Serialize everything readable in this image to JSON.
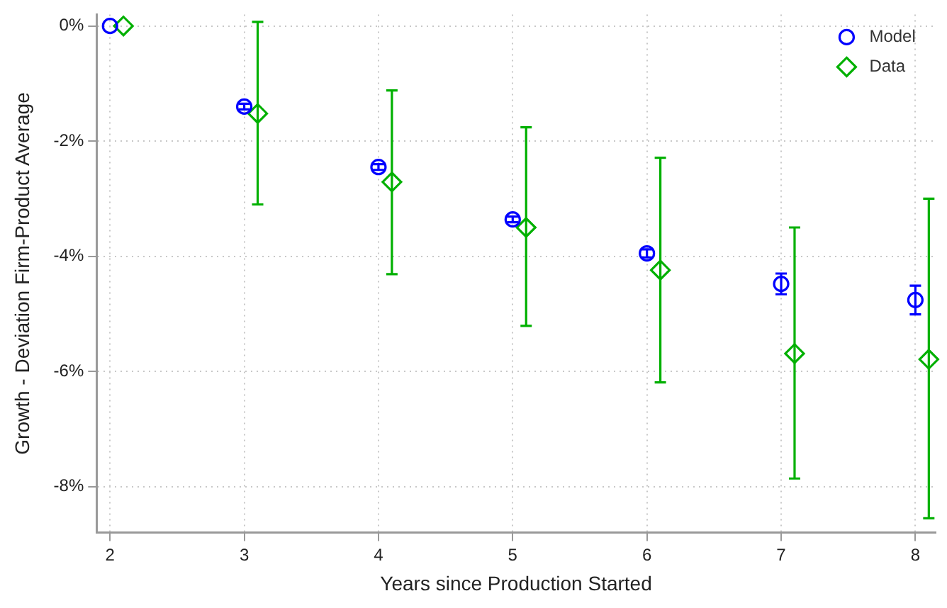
{
  "chart_data": {
    "type": "scatter",
    "xlabel": "Years since Production Started",
    "ylabel": "Growth - Deviation Firm-Product Average",
    "xlim": [
      1.9,
      8.15
    ],
    "xticks": [
      2,
      3,
      4,
      5,
      6,
      7,
      8
    ],
    "ylim": [
      -8.8,
      0.2
    ],
    "yticks": [
      {
        "value": -8,
        "label": "-8%"
      },
      {
        "value": -6,
        "label": "-6%"
      },
      {
        "value": -4,
        "label": "-4%"
      },
      {
        "value": -2,
        "label": "-2%"
      },
      {
        "value": 0,
        "label": "0%"
      }
    ],
    "grid": true,
    "legend": "top right",
    "series": [
      {
        "name": "Model",
        "color": "#0000ff",
        "marker": "circle",
        "x": [
          2,
          3,
          4,
          5,
          6,
          7,
          8
        ],
        "values": [
          0,
          -1.4,
          -2.45,
          -3.36,
          -3.95,
          -4.48,
          -4.76
        ],
        "errors": [
          null,
          0.05,
          0.05,
          0.05,
          0.07,
          0.18,
          0.25
        ]
      },
      {
        "name": "Data",
        "color": "#00b000",
        "marker": "diamond",
        "x": [
          2.1,
          3.1,
          4.1,
          5.1,
          6.1,
          7.1,
          8.1
        ],
        "values": [
          0,
          -1.52,
          -2.71,
          -3.5,
          -4.24,
          -5.69,
          -5.79
        ],
        "errors": [
          null,
          [
            -3.1,
            0.07
          ],
          [
            -4.31,
            -1.12
          ],
          [
            -5.21,
            -1.76
          ],
          [
            -6.19,
            -2.29
          ],
          [
            -7.86,
            -3.5
          ],
          [
            -8.55,
            -3.0
          ]
        ]
      }
    ]
  }
}
